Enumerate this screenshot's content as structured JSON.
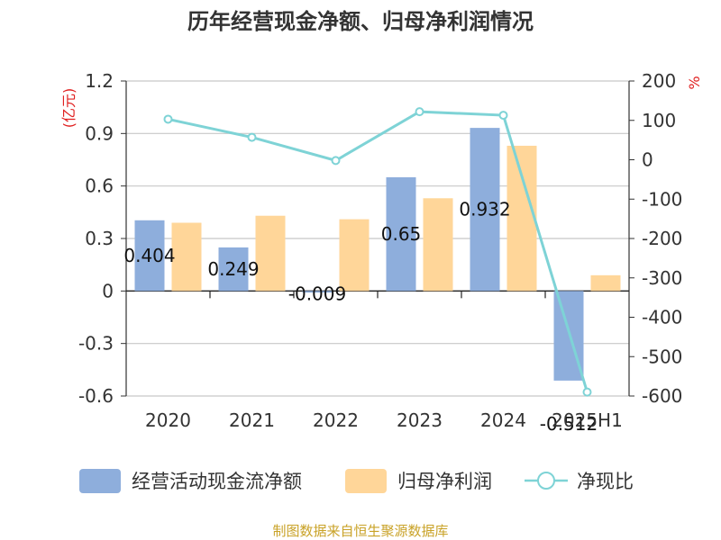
{
  "title": "历年经营现金净额、归母净利润情况",
  "source": "制图数据来自恒生聚源数据库",
  "chart_data": {
    "type": "bar",
    "categories": [
      "2020",
      "2021",
      "2022",
      "2023",
      "2024",
      "2025H1"
    ],
    "y_left": {
      "unit": "(亿元)",
      "range": [
        -0.6,
        1.2
      ],
      "ticks": [
        "1.2",
        "0.9",
        "0.6",
        "0.3",
        "0",
        "-0.3",
        "-0.6"
      ]
    },
    "y_right": {
      "unit": "%",
      "range": [
        -600,
        200
      ],
      "ticks": [
        "200",
        "100",
        "0",
        "-100",
        "-200",
        "-300",
        "-400",
        "-500",
        "-600"
      ]
    },
    "series": [
      {
        "name": "经营活动现金流净额",
        "kind": "bar",
        "axis": "left",
        "color": "#8EAEDC",
        "values": [
          0.404,
          0.249,
          -0.009,
          0.65,
          0.932,
          -0.512
        ],
        "labels": [
          "0.404",
          "0.249",
          "-0.009",
          "0.65",
          "0.932",
          "-0.512"
        ]
      },
      {
        "name": "归母净利润",
        "kind": "bar",
        "axis": "left",
        "color": "#FFD699",
        "values": [
          0.39,
          0.43,
          0.41,
          0.53,
          0.83,
          0.09
        ]
      },
      {
        "name": "净现比",
        "kind": "line",
        "axis": "right",
        "color": "#7ED3D6",
        "values": [
          103,
          57,
          -2,
          122,
          113,
          -590
        ]
      }
    ],
    "grid": true,
    "legend_position": "bottom"
  }
}
